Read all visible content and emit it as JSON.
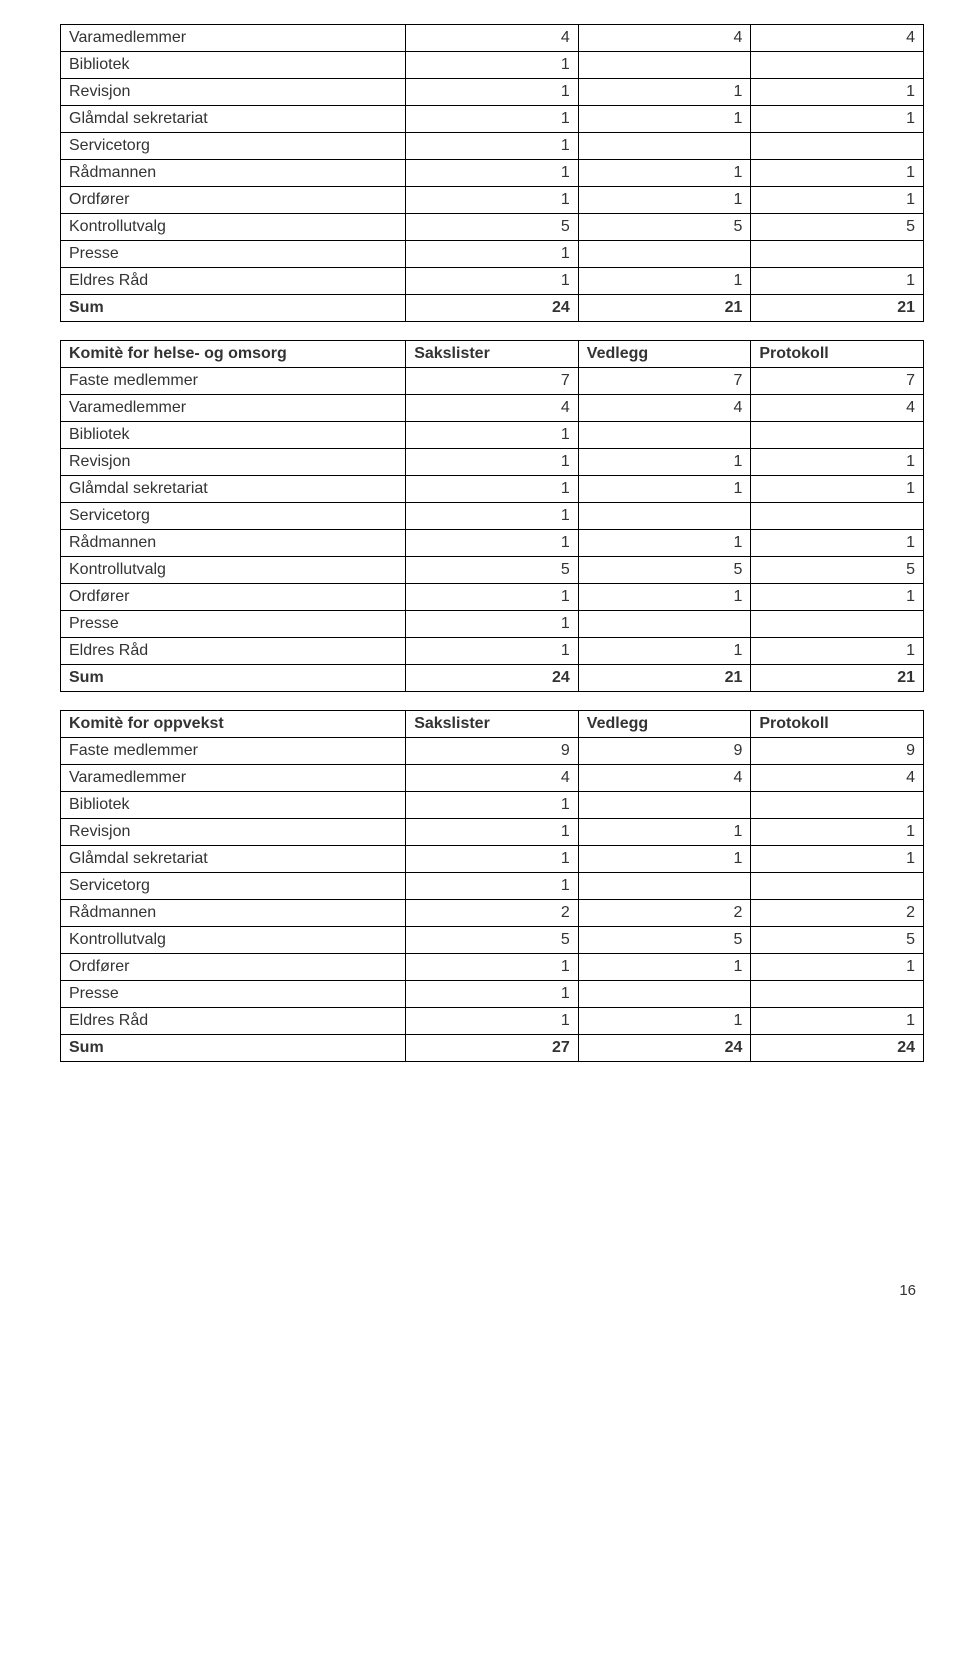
{
  "table1": {
    "rows": [
      {
        "label": "Varamedlemmer",
        "c1": "4",
        "c2": "4",
        "c3": "4",
        "bold": false
      },
      {
        "label": "Bibliotek",
        "c1": "1",
        "c2": "",
        "c3": "",
        "bold": false
      },
      {
        "label": "Revisjon",
        "c1": "1",
        "c2": "1",
        "c3": "1",
        "bold": false
      },
      {
        "label": "Glåmdal sekretariat",
        "c1": "1",
        "c2": "1",
        "c3": "1",
        "bold": false
      },
      {
        "label": "Servicetorg",
        "c1": "1",
        "c2": "",
        "c3": "",
        "bold": false
      },
      {
        "label": "Rådmannen",
        "c1": "1",
        "c2": "1",
        "c3": "1",
        "bold": false
      },
      {
        "label": "Ordfører",
        "c1": "1",
        "c2": "1",
        "c3": "1",
        "bold": false
      },
      {
        "label": "Kontrollutvalg",
        "c1": "5",
        "c2": "5",
        "c3": "5",
        "bold": false
      },
      {
        "label": "Presse",
        "c1": "1",
        "c2": "",
        "c3": "",
        "bold": false
      },
      {
        "label": "Eldres Råd",
        "c1": "1",
        "c2": "1",
        "c3": "1",
        "bold": false
      },
      {
        "label": "Sum",
        "c1": "24",
        "c2": "21",
        "c3": "21",
        "bold": true
      }
    ]
  },
  "table2": {
    "header": {
      "h0": "Komitè for helse- og omsorg",
      "h1": "Sakslister",
      "h2": "Vedlegg",
      "h3": "Protokoll"
    },
    "rows": [
      {
        "label": "Faste medlemmer",
        "c1": "7",
        "c2": "7",
        "c3": "7",
        "bold": false
      },
      {
        "label": "Varamedlemmer",
        "c1": "4",
        "c2": "4",
        "c3": "4",
        "bold": false
      },
      {
        "label": "Bibliotek",
        "c1": "1",
        "c2": "",
        "c3": "",
        "bold": false
      },
      {
        "label": "Revisjon",
        "c1": "1",
        "c2": "1",
        "c3": "1",
        "bold": false
      },
      {
        "label": "Glåmdal sekretariat",
        "c1": "1",
        "c2": "1",
        "c3": "1",
        "bold": false
      },
      {
        "label": "Servicetorg",
        "c1": "1",
        "c2": "",
        "c3": "",
        "bold": false
      },
      {
        "label": "Rådmannen",
        "c1": "1",
        "c2": "1",
        "c3": "1",
        "bold": false
      },
      {
        "label": "Kontrollutvalg",
        "c1": "5",
        "c2": "5",
        "c3": "5",
        "bold": false
      },
      {
        "label": "Ordfører",
        "c1": "1",
        "c2": "1",
        "c3": "1",
        "bold": false
      },
      {
        "label": "Presse",
        "c1": "1",
        "c2": "",
        "c3": "",
        "bold": false
      },
      {
        "label": "Eldres Råd",
        "c1": "1",
        "c2": "1",
        "c3": "1",
        "bold": false
      },
      {
        "label": "Sum",
        "c1": "24",
        "c2": "21",
        "c3": "21",
        "bold": true
      }
    ]
  },
  "table3": {
    "header": {
      "h0": "Komitè for oppvekst",
      "h1": "Sakslister",
      "h2": "Vedlegg",
      "h3": "Protokoll"
    },
    "rows": [
      {
        "label": "Faste medlemmer",
        "c1": "9",
        "c2": "9",
        "c3": "9",
        "bold": false
      },
      {
        "label": "Varamedlemmer",
        "c1": "4",
        "c2": "4",
        "c3": "4",
        "bold": false
      },
      {
        "label": "Bibliotek",
        "c1": "1",
        "c2": "",
        "c3": "",
        "bold": false
      },
      {
        "label": "Revisjon",
        "c1": "1",
        "c2": "1",
        "c3": "1",
        "bold": false
      },
      {
        "label": "Glåmdal sekretariat",
        "c1": "1",
        "c2": "1",
        "c3": "1",
        "bold": false
      },
      {
        "label": "Servicetorg",
        "c1": "1",
        "c2": "",
        "c3": "",
        "bold": false
      },
      {
        "label": "Rådmannen",
        "c1": "2",
        "c2": "2",
        "c3": "2",
        "bold": false
      },
      {
        "label": "Kontrollutvalg",
        "c1": "5",
        "c2": "5",
        "c3": "5",
        "bold": false
      },
      {
        "label": "Ordfører",
        "c1": "1",
        "c2": "1",
        "c3": "1",
        "bold": false
      },
      {
        "label": "Presse",
        "c1": "1",
        "c2": "",
        "c3": "",
        "bold": false
      },
      {
        "label": "Eldres Råd",
        "c1": "1",
        "c2": "1",
        "c3": "1",
        "bold": false
      },
      {
        "label": "Sum",
        "c1": "27",
        "c2": "24",
        "c3": "24",
        "bold": true
      }
    ]
  },
  "page_number": "16"
}
